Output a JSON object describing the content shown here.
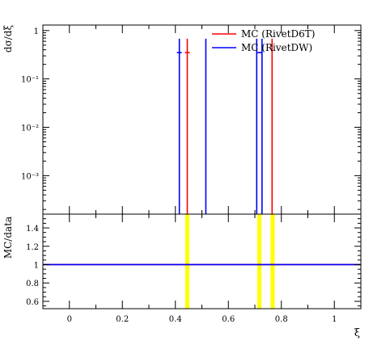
{
  "chart_data": [
    {
      "type": "line",
      "panel": "main",
      "ylabel": "dσ/dξ",
      "yscale": "log",
      "xlim": [
        -0.1,
        1.1
      ],
      "ylim": [
        0.00016,
        1.3
      ],
      "ytick_labels": [
        {
          "value": 1,
          "label": "1"
        },
        {
          "value": 0.1,
          "label": "10⁻¹"
        },
        {
          "value": 0.01,
          "label": "10⁻²"
        },
        {
          "value": 0.001,
          "label": "10⁻³"
        }
      ],
      "legend_position": "top-right",
      "series": [
        {
          "name": "MC (RivetD6T)",
          "color": "#ff0000",
          "spikes": [
            {
              "x": 0.445,
              "y": 0.68
            },
            {
              "x": 0.765,
              "y": 0.68
            }
          ],
          "markers": [
            {
              "x": 0.445,
              "y": 0.35
            }
          ]
        },
        {
          "name": "MC (RivetDW)",
          "color": "#0000ff",
          "spikes": [
            {
              "x": 0.415,
              "y": 0.68
            },
            {
              "x": 0.515,
              "y": 0.68
            },
            {
              "x": 0.707,
              "y": 0.68
            },
            {
              "x": 0.727,
              "y": 0.68
            }
          ],
          "markers": [
            {
              "x": 0.415,
              "y": 0.35
            },
            {
              "x": 0.717,
              "y": 0.35
            }
          ]
        }
      ]
    },
    {
      "type": "line",
      "panel": "ratio",
      "ylabel": "MC/data",
      "xlabel": "ξ",
      "xlim": [
        -0.1,
        1.1
      ],
      "ylim": [
        0.52,
        1.55
      ],
      "ytick_labels": [
        {
          "value": 1.4,
          "label": "1.4"
        },
        {
          "value": 1.2,
          "label": "1.2"
        },
        {
          "value": 1.0,
          "label": "1"
        },
        {
          "value": 0.8,
          "label": "0.8"
        },
        {
          "value": 0.6,
          "label": "0.6"
        }
      ],
      "xtick_labels": [
        {
          "value": 0,
          "label": "0"
        },
        {
          "value": 0.2,
          "label": "0.2"
        },
        {
          "value": 0.4,
          "label": "0.4"
        },
        {
          "value": 0.6,
          "label": "0.6"
        },
        {
          "value": 0.8,
          "label": "0.8"
        },
        {
          "value": 1,
          "label": "1"
        }
      ],
      "reference_value": 1,
      "series": [
        {
          "name": "MC (RivetD6T)",
          "color": "#ff0000",
          "value": 1
        },
        {
          "name": "MC (RivetDW)",
          "color": "#0000ff",
          "value": 1
        }
      ],
      "highlight_bands": {
        "color": "#ffff00",
        "x": [
          0.445,
          0.717,
          0.767
        ]
      }
    }
  ]
}
